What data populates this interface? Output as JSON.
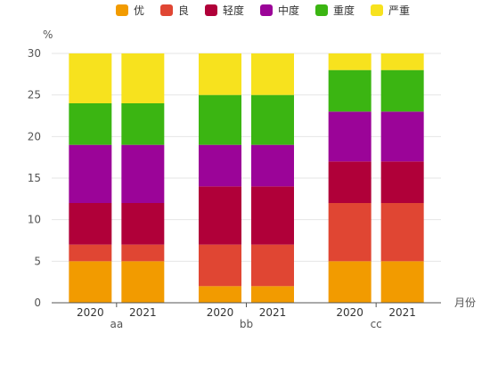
{
  "chart_data": {
    "type": "bar",
    "stacked": true,
    "ylabel": "%",
    "xlabel": "月份",
    "ylim": [
      0,
      30
    ],
    "yticks": [
      0,
      5,
      10,
      15,
      20,
      25,
      30
    ],
    "grid": true,
    "legend_position": "top",
    "groups": [
      {
        "name": "aa",
        "categories": [
          "2020",
          "2021"
        ]
      },
      {
        "name": "bb",
        "categories": [
          "2020",
          "2021"
        ]
      },
      {
        "name": "cc",
        "categories": [
          "2020",
          "2021"
        ]
      }
    ],
    "series": [
      {
        "name": "优",
        "color": "#f29b00",
        "values": [
          5,
          5,
          2,
          2,
          5,
          5
        ]
      },
      {
        "name": "良",
        "color": "#e04633",
        "values": [
          2,
          2,
          5,
          5,
          7,
          7
        ]
      },
      {
        "name": "轻度",
        "color": "#b00039",
        "values": [
          5,
          5,
          7,
          7,
          5,
          5
        ]
      },
      {
        "name": "中度",
        "color": "#9b0498",
        "values": [
          7,
          7,
          5,
          5,
          6,
          6
        ]
      },
      {
        "name": "重度",
        "color": "#3bb512",
        "values": [
          5,
          5,
          6,
          6,
          5,
          5
        ]
      },
      {
        "name": "严重",
        "color": "#f7e21e",
        "values": [
          6,
          6,
          5,
          5,
          2,
          2
        ]
      }
    ]
  }
}
